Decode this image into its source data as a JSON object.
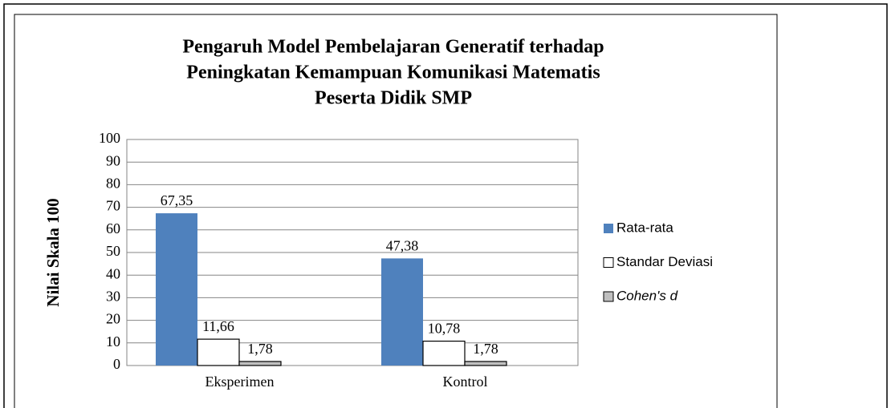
{
  "chart_data": {
    "type": "bar",
    "title": [
      "Pengaruh Model Pembelajaran Generatif terhadap",
      "Peningkatan Kemampuan Komunikasi Matematis",
      "Peserta Didik SMP"
    ],
    "y_label": "Nilai Skala 100",
    "categories": [
      "Eksperimen",
      "Kontrol"
    ],
    "series": [
      {
        "name": "Rata-rata",
        "color": "#4f81bd",
        "values": [
          67.35,
          47.38
        ],
        "value_labels": [
          "67,35",
          "47,38"
        ]
      },
      {
        "name": "Standar Deviasi",
        "color": "#ffffff",
        "values": [
          11.66,
          10.78
        ],
        "value_labels": [
          "11,66",
          "10,78"
        ]
      },
      {
        "name": "Cohen's d",
        "color": "#bfbfbf",
        "italic": true,
        "values": [
          1.78,
          1.78
        ],
        "value_labels": [
          "1,78",
          "1,78"
        ]
      }
    ],
    "ylim": [
      0,
      100
    ],
    "yticks": [
      0,
      10,
      20,
      30,
      40,
      50,
      60,
      70,
      80,
      90,
      100
    ],
    "grid": true,
    "legend": "right"
  }
}
